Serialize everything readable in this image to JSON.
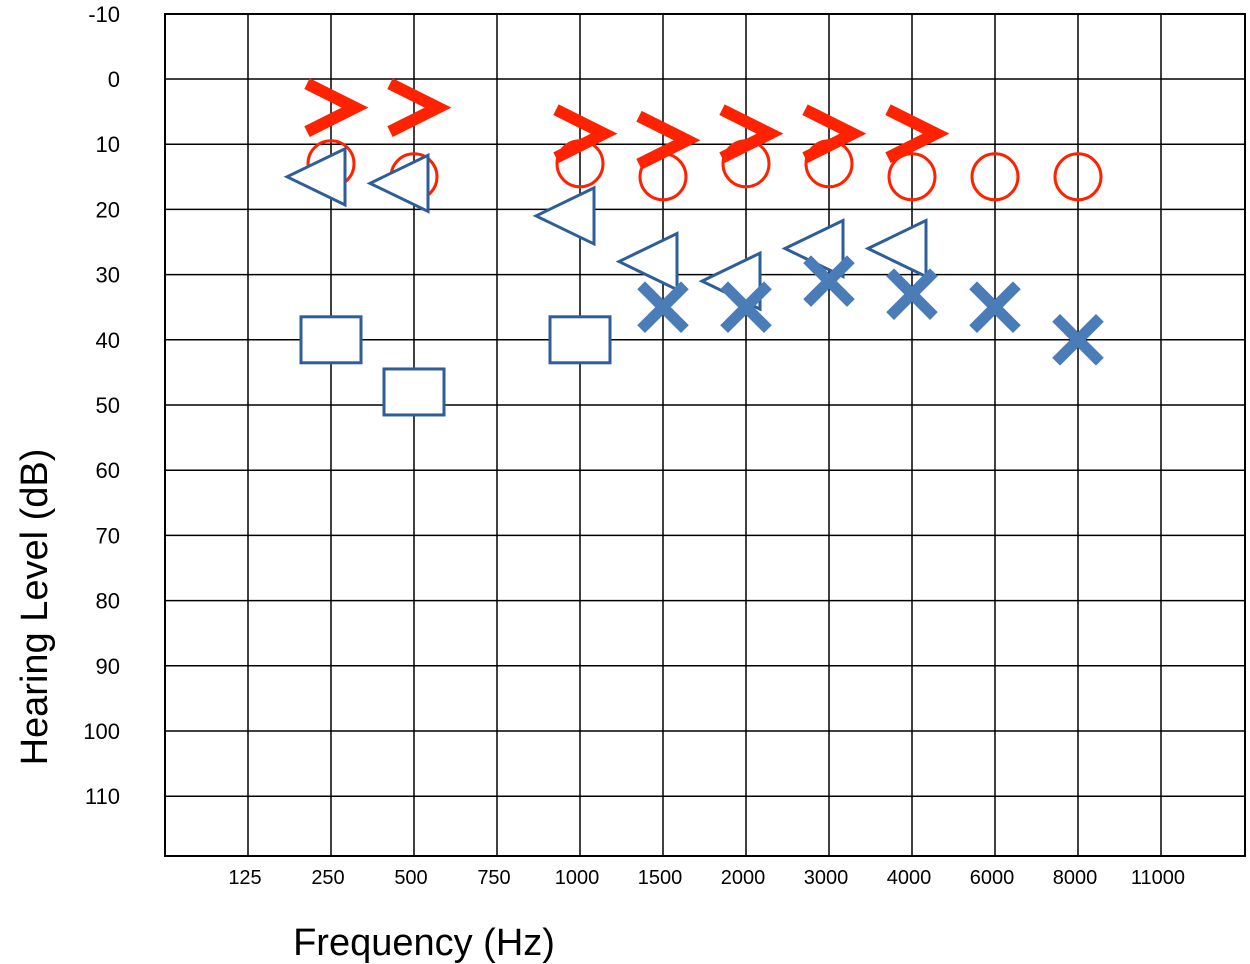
{
  "chart_data": {
    "type": "scatter",
    "title": "",
    "xlabel": "Frequency (Hz)",
    "ylabel": "Hearing Level (dB)",
    "x_ticks": [
      "125",
      "250",
      "500",
      "750",
      "1000",
      "1500",
      "2000",
      "3000",
      "4000",
      "6000",
      "8000",
      "11000"
    ],
    "y_ticks": [
      "-10",
      "0",
      "10",
      "20",
      "30",
      "40",
      "50",
      "60",
      "70",
      "80",
      "90",
      "100",
      "110"
    ],
    "ylim": [
      -10,
      110
    ],
    "y_inverted": true,
    "grid": true,
    "series": [
      {
        "marker": "circle",
        "color": "#ff2200",
        "points": [
          {
            "x": "250",
            "y": 13
          },
          {
            "x": "500",
            "y": 15
          },
          {
            "x": "1000",
            "y": 13
          },
          {
            "x": "1500",
            "y": 15
          },
          {
            "x": "2000",
            "y": 13
          },
          {
            "x": "3000",
            "y": 13
          },
          {
            "x": "4000",
            "y": 15
          },
          {
            "x": "6000",
            "y": 15
          },
          {
            "x": "8000",
            "y": 15
          }
        ]
      },
      {
        "marker": "chevron-right",
        "color": "#ff2200",
        "points": [
          {
            "x": "250",
            "y": 5
          },
          {
            "x": "500",
            "y": 5
          },
          {
            "x": "1000",
            "y": 9
          },
          {
            "x": "1500",
            "y": 10
          },
          {
            "x": "2000",
            "y": 9
          },
          {
            "x": "3000",
            "y": 9
          },
          {
            "x": "4000",
            "y": 9
          }
        ]
      },
      {
        "marker": "triangle-left",
        "color": "#2e5e99",
        "points": [
          {
            "x": "250",
            "y": 15
          },
          {
            "x": "500",
            "y": 16
          },
          {
            "x": "1000",
            "y": 21
          },
          {
            "x": "1500",
            "y": 28
          },
          {
            "x": "2000",
            "y": 31
          },
          {
            "x": "3000",
            "y": 26
          },
          {
            "x": "4000",
            "y": 26
          }
        ]
      },
      {
        "marker": "x",
        "color": "#4a7cb8",
        "points": [
          {
            "x": "1500",
            "y": 35
          },
          {
            "x": "2000",
            "y": 35
          },
          {
            "x": "3000",
            "y": 31
          },
          {
            "x": "4000",
            "y": 33
          },
          {
            "x": "6000",
            "y": 35
          },
          {
            "x": "8000",
            "y": 40
          }
        ]
      },
      {
        "marker": "square",
        "color": "#2e5e99",
        "points": [
          {
            "x": "250",
            "y": 40
          },
          {
            "x": "500",
            "y": 48
          },
          {
            "x": "1000",
            "y": 40
          }
        ]
      }
    ]
  }
}
